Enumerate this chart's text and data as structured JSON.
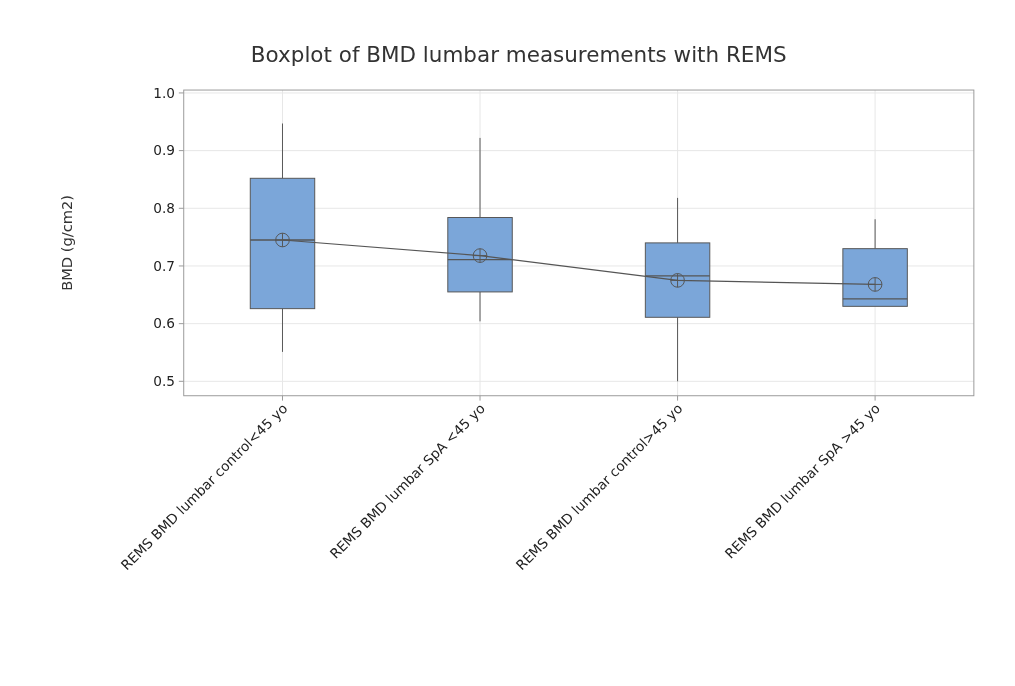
{
  "chart_data": {
    "type": "box",
    "title": "Boxplot of BMD lumbar measurements with REMS",
    "ylabel": "BMD (g/cm2)",
    "categories": [
      "REMS BMD lumbar control<45 yo",
      "REMS BMD lumbar SpA <45 yo",
      "REMS BMD lumbar control>45 yo",
      "REMS BMD lumbar SpA >45 yo"
    ],
    "series": [
      {
        "color": "#7ba6d9",
        "boxes": [
          {
            "low": 0.551,
            "q1": 0.626,
            "median": 0.745,
            "q3": 0.852,
            "high": 0.947,
            "mean": 0.745
          },
          {
            "low": 0.604,
            "q1": 0.655,
            "median": 0.711,
            "q3": 0.784,
            "high": 0.922,
            "mean": 0.718
          },
          {
            "low": 0.5,
            "q1": 0.611,
            "median": 0.683,
            "q3": 0.74,
            "high": 0.818,
            "mean": 0.675
          },
          {
            "low": 0.63,
            "q1": 0.63,
            "median": 0.643,
            "q3": 0.73,
            "high": 0.781,
            "mean": 0.668
          }
        ]
      },
      {
        "type": "line",
        "color": "#555555",
        "marker": "none",
        "values": [
          0.745,
          0.718,
          0.675,
          0.668
        ]
      }
    ],
    "ylim": [
      0.475,
      1.005
    ],
    "yticks": [
      {
        "value": 0.5,
        "label": "0.5"
      },
      {
        "value": 0.6,
        "label": "0.6"
      },
      {
        "value": 0.7,
        "label": "0.7"
      },
      {
        "value": 0.8,
        "label": "0.8"
      },
      {
        "value": 0.9,
        "label": "0.9"
      },
      {
        "value": 1.0,
        "label": "1.0"
      }
    ],
    "grid": true
  }
}
